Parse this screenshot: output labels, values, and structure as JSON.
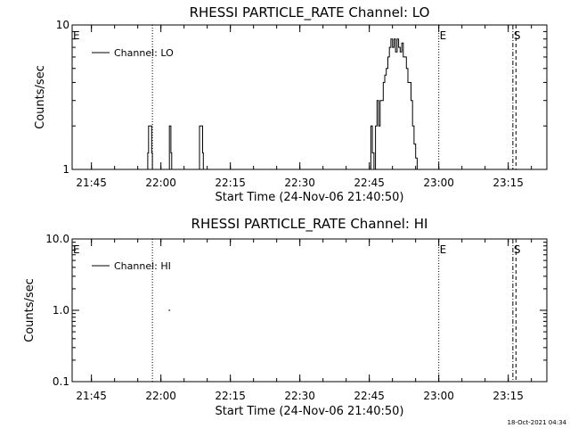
{
  "timestamp": "18-Oct-2021 04:34",
  "chart_data": [
    {
      "type": "line",
      "title": "RHESSI PARTICLE_RATE Channel: LO",
      "xlabel": "Start Time (24-Nov-06 21:40:50)",
      "ylabel": "Counts/sec",
      "y_scale": "log",
      "ylim": [
        1,
        10
      ],
      "xlim": [
        "21:40:50",
        "23:23:20"
      ],
      "x_ticks": [
        "21:45",
        "22:00",
        "22:15",
        "22:30",
        "22:45",
        "23:00",
        "23:15"
      ],
      "y_ticks": [
        "1",
        "10"
      ],
      "legend": "top-left",
      "series": [
        {
          "name": "Channel: LO",
          "x": [
            "21:40:50",
            "21:57:10",
            "21:57:20",
            "21:57:40",
            "21:58:00",
            "21:58:10",
            "21:59:00",
            "22:01:40",
            "22:01:50",
            "22:02:10",
            "22:02:20",
            "22:08:10",
            "22:08:20",
            "22:08:40",
            "22:09:00",
            "22:09:10",
            "22:45:10",
            "22:45:20",
            "22:45:40",
            "22:46:00",
            "22:46:20",
            "22:46:40",
            "22:47:00",
            "22:47:20",
            "22:47:40",
            "22:48:00",
            "22:48:20",
            "22:48:40",
            "22:49:00",
            "22:49:20",
            "22:49:40",
            "22:50:00",
            "22:50:20",
            "22:50:40",
            "22:51:00",
            "22:51:20",
            "22:51:40",
            "22:52:00",
            "22:52:20",
            "22:52:40",
            "22:53:00",
            "22:53:20",
            "22:53:40",
            "22:54:00",
            "22:54:20",
            "22:54:40",
            "22:55:00",
            "22:55:20",
            "22:55:40",
            "23:23:20"
          ],
          "values": [
            1,
            1.3,
            2,
            2,
            1.3,
            1,
            1,
            1,
            2,
            1.3,
            1,
            1,
            2,
            2,
            1.3,
            1,
            1,
            2,
            1.3,
            1,
            2,
            3,
            2,
            3,
            3,
            4,
            4.5,
            5,
            6,
            7,
            8,
            7,
            8,
            6.5,
            8,
            7,
            6.5,
            7.5,
            6,
            6,
            5,
            4,
            4,
            3,
            2,
            1.5,
            1.2,
            1,
            1,
            1
          ]
        }
      ],
      "markers": [
        {
          "label": "E",
          "time": "21:40:50",
          "style": "dotted"
        },
        {
          "time": "21:58:10",
          "style": "dotted"
        },
        {
          "label": "E",
          "time": "23:00:00",
          "style": "dotted"
        },
        {
          "label": "S",
          "time": "23:16:00",
          "style": "dash-dot"
        },
        {
          "time": "23:16:40",
          "style": "dashed"
        }
      ]
    },
    {
      "type": "scatter",
      "title": "RHESSI PARTICLE_RATE Channel: HI",
      "xlabel": "Start Time (24-Nov-06 21:40:50)",
      "ylabel": "Counts/sec",
      "y_scale": "log",
      "ylim": [
        0.1,
        10
      ],
      "xlim": [
        "21:40:50",
        "23:23:20"
      ],
      "x_ticks": [
        "21:45",
        "22:00",
        "22:15",
        "22:30",
        "22:45",
        "23:00",
        "23:15"
      ],
      "y_ticks": [
        "10.0",
        "1.0",
        "0.1"
      ],
      "legend": "top-left",
      "series": [
        {
          "name": "Channel: HI",
          "x": [
            "22:01:50"
          ],
          "values": [
            1
          ]
        }
      ],
      "markers": [
        {
          "label": "E",
          "time": "21:40:50",
          "style": "dotted"
        },
        {
          "time": "21:58:10",
          "style": "dotted"
        },
        {
          "label": "E",
          "time": "23:00:00",
          "style": "dotted"
        },
        {
          "label": "S",
          "time": "23:16:00",
          "style": "dash-dot"
        },
        {
          "time": "23:16:40",
          "style": "dashed"
        }
      ]
    }
  ]
}
